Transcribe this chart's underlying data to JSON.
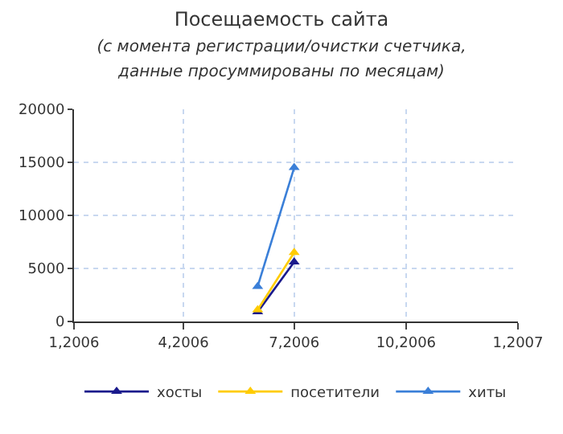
{
  "chart_data": {
    "type": "line",
    "title": "Посещаемость сайта",
    "subtitle": "(с момента регистрации/очистки счетчика,\nданные просуммированы по месяцам)",
    "series": [
      {
        "name": "хосты",
        "color": "#1a1a8c",
        "x": [
          "2006-06",
          "2006-07"
        ],
        "values": [
          900,
          5600
        ]
      },
      {
        "name": "посетители",
        "color": "#ffcc00",
        "x": [
          "2006-06",
          "2006-07"
        ],
        "values": [
          1100,
          6500
        ]
      },
      {
        "name": "хиты",
        "color": "#3a7fd8",
        "x": [
          "2006-06",
          "2006-07"
        ],
        "values": [
          3300,
          14500
        ]
      }
    ],
    "xlim": [
      "2006-01",
      "2007-01"
    ],
    "xticks": [
      {
        "value": "2006-01",
        "label": "1,2006"
      },
      {
        "value": "2006-04",
        "label": "4,2006"
      },
      {
        "value": "2006-07",
        "label": "7,2006"
      },
      {
        "value": "2006-10",
        "label": "10,2006"
      },
      {
        "value": "2007-01",
        "label": "1,2007"
      }
    ],
    "ylim": [
      0,
      20000
    ],
    "yticks": [
      0,
      5000,
      10000,
      15000,
      20000
    ],
    "grid": true,
    "legend": "bottom",
    "marker": "triangle",
    "line_style": "solid"
  }
}
